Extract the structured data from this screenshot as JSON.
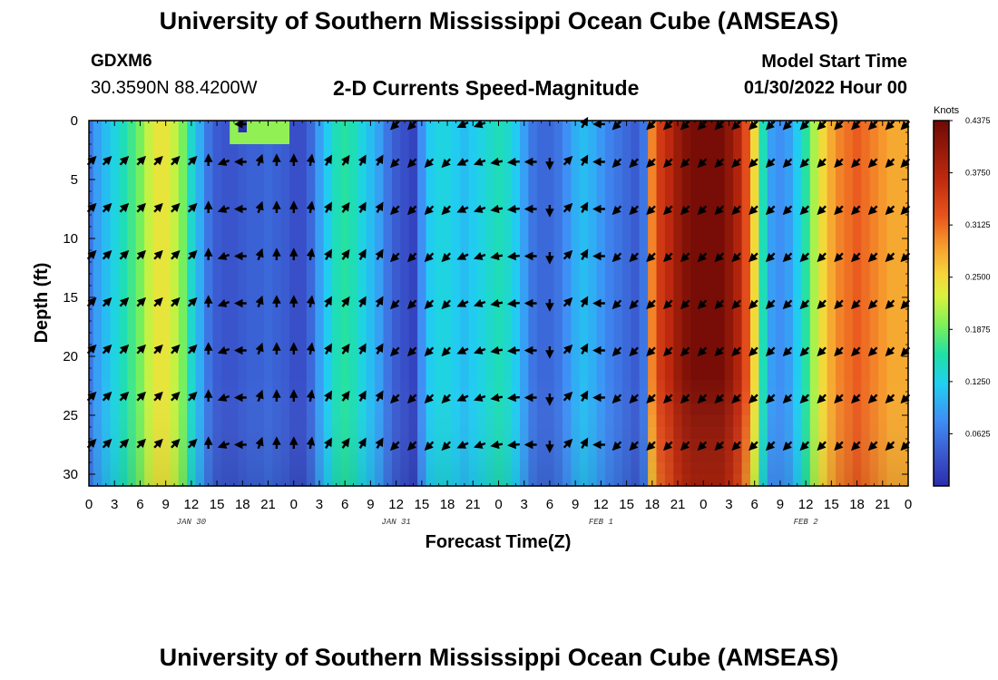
{
  "header": {
    "title": "University of Southern Mississippi Ocean Cube (AMSEAS)",
    "station_id": "GDXM6",
    "coordinates": "30.3590N  88.4200W",
    "subtitle": "2-D Currents Speed-Magnitude",
    "model_start_label": "Model Start Time",
    "model_start_value": "01/30/2022 Hour 00"
  },
  "footer": {
    "title": "University of Southern Mississippi Ocean Cube (AMSEAS)"
  },
  "chart_data": {
    "type": "heatmap",
    "title": "2-D Currents Speed-Magnitude",
    "xlabel": "Forecast Time(Z)",
    "ylabel": "Depth (ft)",
    "x_hours_range": [
      0,
      96
    ],
    "y_depth_range": [
      0,
      31
    ],
    "x_tick_labels": [
      "0",
      "3",
      "6",
      "9",
      "12",
      "15",
      "18",
      "21",
      "0",
      "3",
      "6",
      "9",
      "12",
      "15",
      "18",
      "21",
      "0",
      "3",
      "6",
      "9",
      "12",
      "15",
      "18",
      "21",
      "0",
      "3",
      "6",
      "9",
      "12",
      "15",
      "18",
      "21",
      "0"
    ],
    "y_ticks": [
      0,
      5,
      10,
      15,
      20,
      25,
      30
    ],
    "date_labels": [
      {
        "hour": 12,
        "text": "JAN 30"
      },
      {
        "hour": 36,
        "text": "JAN 31"
      },
      {
        "hour": 60,
        "text": "FEB 1"
      },
      {
        "hour": 84,
        "text": "FEB 2"
      }
    ],
    "colorbar": {
      "unit": "Knots",
      "min": 0.0,
      "max": 0.4375,
      "tick_labels": [
        "0.4375",
        "0.3750",
        "0.3125",
        "0.2500",
        "0.1875",
        "0.1250",
        "0.0625"
      ],
      "tick_values": [
        0.4375,
        0.375,
        0.3125,
        0.25,
        0.1875,
        0.125,
        0.0625
      ]
    },
    "speed_profile_knots": {
      "hours": [
        0,
        1,
        2,
        3,
        4,
        5,
        6,
        7,
        8,
        9,
        10,
        11,
        12,
        13,
        14,
        15,
        16,
        17,
        18,
        19,
        20,
        21,
        22,
        23,
        24,
        25,
        26,
        27,
        28,
        29,
        30,
        31,
        32,
        33,
        34,
        35,
        36,
        37,
        38,
        39,
        40,
        41,
        42,
        43,
        44,
        45,
        46,
        47,
        48,
        49,
        50,
        51,
        52,
        53,
        54,
        55,
        56,
        57,
        58,
        59,
        60,
        61,
        62,
        63,
        64,
        65,
        66,
        67,
        68,
        69,
        70,
        71,
        72,
        73,
        74,
        75,
        76,
        77,
        78,
        79,
        80,
        81,
        82,
        83,
        84,
        85,
        86,
        87,
        88,
        89,
        90,
        91,
        92,
        93,
        94,
        95,
        96
      ],
      "values": [
        0.06,
        0.09,
        0.11,
        0.13,
        0.15,
        0.17,
        0.19,
        0.22,
        0.24,
        0.24,
        0.22,
        0.19,
        0.14,
        0.1,
        0.06,
        0.04,
        0.035,
        0.035,
        0.04,
        0.045,
        0.045,
        0.05,
        0.045,
        0.04,
        0.03,
        0.03,
        0.05,
        0.09,
        0.12,
        0.15,
        0.16,
        0.15,
        0.13,
        0.11,
        0.09,
        0.06,
        0.04,
        0.03,
        0.02,
        0.08,
        0.12,
        0.13,
        0.13,
        0.12,
        0.11,
        0.12,
        0.13,
        0.14,
        0.15,
        0.14,
        0.12,
        0.09,
        0.06,
        0.05,
        0.05,
        0.06,
        0.08,
        0.1,
        0.11,
        0.1,
        0.085,
        0.07,
        0.06,
        0.05,
        0.04,
        0.06,
        0.3,
        0.35,
        0.37,
        0.4,
        0.42,
        0.43,
        0.43,
        0.43,
        0.43,
        0.41,
        0.38,
        0.33,
        0.25,
        0.15,
        0.09,
        0.08,
        0.09,
        0.12,
        0.16,
        0.21,
        0.25,
        0.28,
        0.3,
        0.31,
        0.32,
        0.31,
        0.3,
        0.29,
        0.28,
        0.28,
        0.28
      ]
    },
    "arrow_grid": {
      "depths": [
        3.5,
        7.5,
        11.5,
        15.5,
        19.5,
        23.5,
        27.5
      ],
      "note": "current direction vectors at 2-hourly intervals",
      "surface_hours": [
        18,
        36,
        38,
        44,
        46,
        58,
        60,
        62,
        66,
        68,
        70,
        72,
        74,
        76,
        78,
        80,
        82,
        84,
        86,
        88,
        90,
        92,
        94,
        96
      ],
      "direction_by_hour_deg": {
        "0": 45,
        "2": 45,
        "4": 45,
        "6": 45,
        "8": 45,
        "10": 45,
        "12": 45,
        "14": 0,
        "16": 250,
        "18": 270,
        "20": 20,
        "22": 0,
        "24": 0,
        "26": 10,
        "28": 30,
        "30": 35,
        "32": 30,
        "34": 30,
        "36": 225,
        "38": 225,
        "40": 225,
        "42": 225,
        "44": 245,
        "46": 250,
        "48": 260,
        "50": 265,
        "52": 270,
        "54": 180,
        "56": 45,
        "58": 30,
        "60": 270,
        "62": 225,
        "64": 225,
        "66": 225,
        "68": 225,
        "70": 225,
        "72": 225,
        "74": 225,
        "76": 225,
        "78": 225,
        "80": 225,
        "82": 225,
        "84": 225,
        "86": 225,
        "88": 225,
        "90": 225,
        "92": 225,
        "94": 225,
        "96": 225
      }
    }
  }
}
